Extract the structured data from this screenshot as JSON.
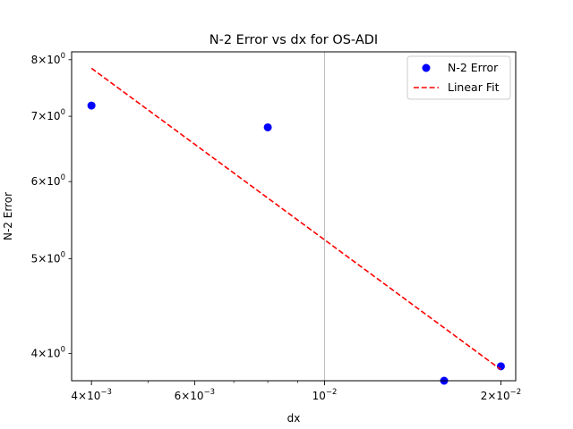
{
  "chart_data": {
    "type": "scatter",
    "title": "N-2 Error vs dx for OS-ADI",
    "xlabel": "dx",
    "ylabel": "N-2 Error",
    "xscale": "log",
    "yscale": "log",
    "xlim": [
      0.0037,
      0.0212
    ],
    "ylim": [
      3.75,
      8.15
    ],
    "grid": "x-major-only",
    "legend": "top-right",
    "x_ticks": [
      {
        "value": 0.004,
        "base": "4×10",
        "exp": "−3"
      },
      {
        "value": 0.006,
        "base": "6×10",
        "exp": "−3"
      },
      {
        "value": 0.01,
        "base": "10",
        "exp": "−2"
      },
      {
        "value": 0.02,
        "base": "2×10",
        "exp": "−2"
      }
    ],
    "y_ticks": [
      {
        "value": 4,
        "base": "4×10",
        "exp": "0"
      },
      {
        "value": 5,
        "base": "5×10",
        "exp": "0"
      },
      {
        "value": 6,
        "base": "6×10",
        "exp": "0"
      },
      {
        "value": 7,
        "base": "7×10",
        "exp": "0"
      },
      {
        "value": 8,
        "base": "8×10",
        "exp": "0"
      }
    ],
    "series": [
      {
        "name": "N-2 Error",
        "kind": "points",
        "color": "#0000ff",
        "x": [
          0.004,
          0.008,
          0.016,
          0.02
        ],
        "y": [
          7.18,
          6.82,
          3.75,
          3.88
        ]
      },
      {
        "name": "Linear Fit",
        "kind": "dashed-line",
        "color": "#ff0000",
        "x": [
          0.004,
          0.02
        ],
        "y": [
          7.84,
          3.85
        ]
      }
    ]
  }
}
